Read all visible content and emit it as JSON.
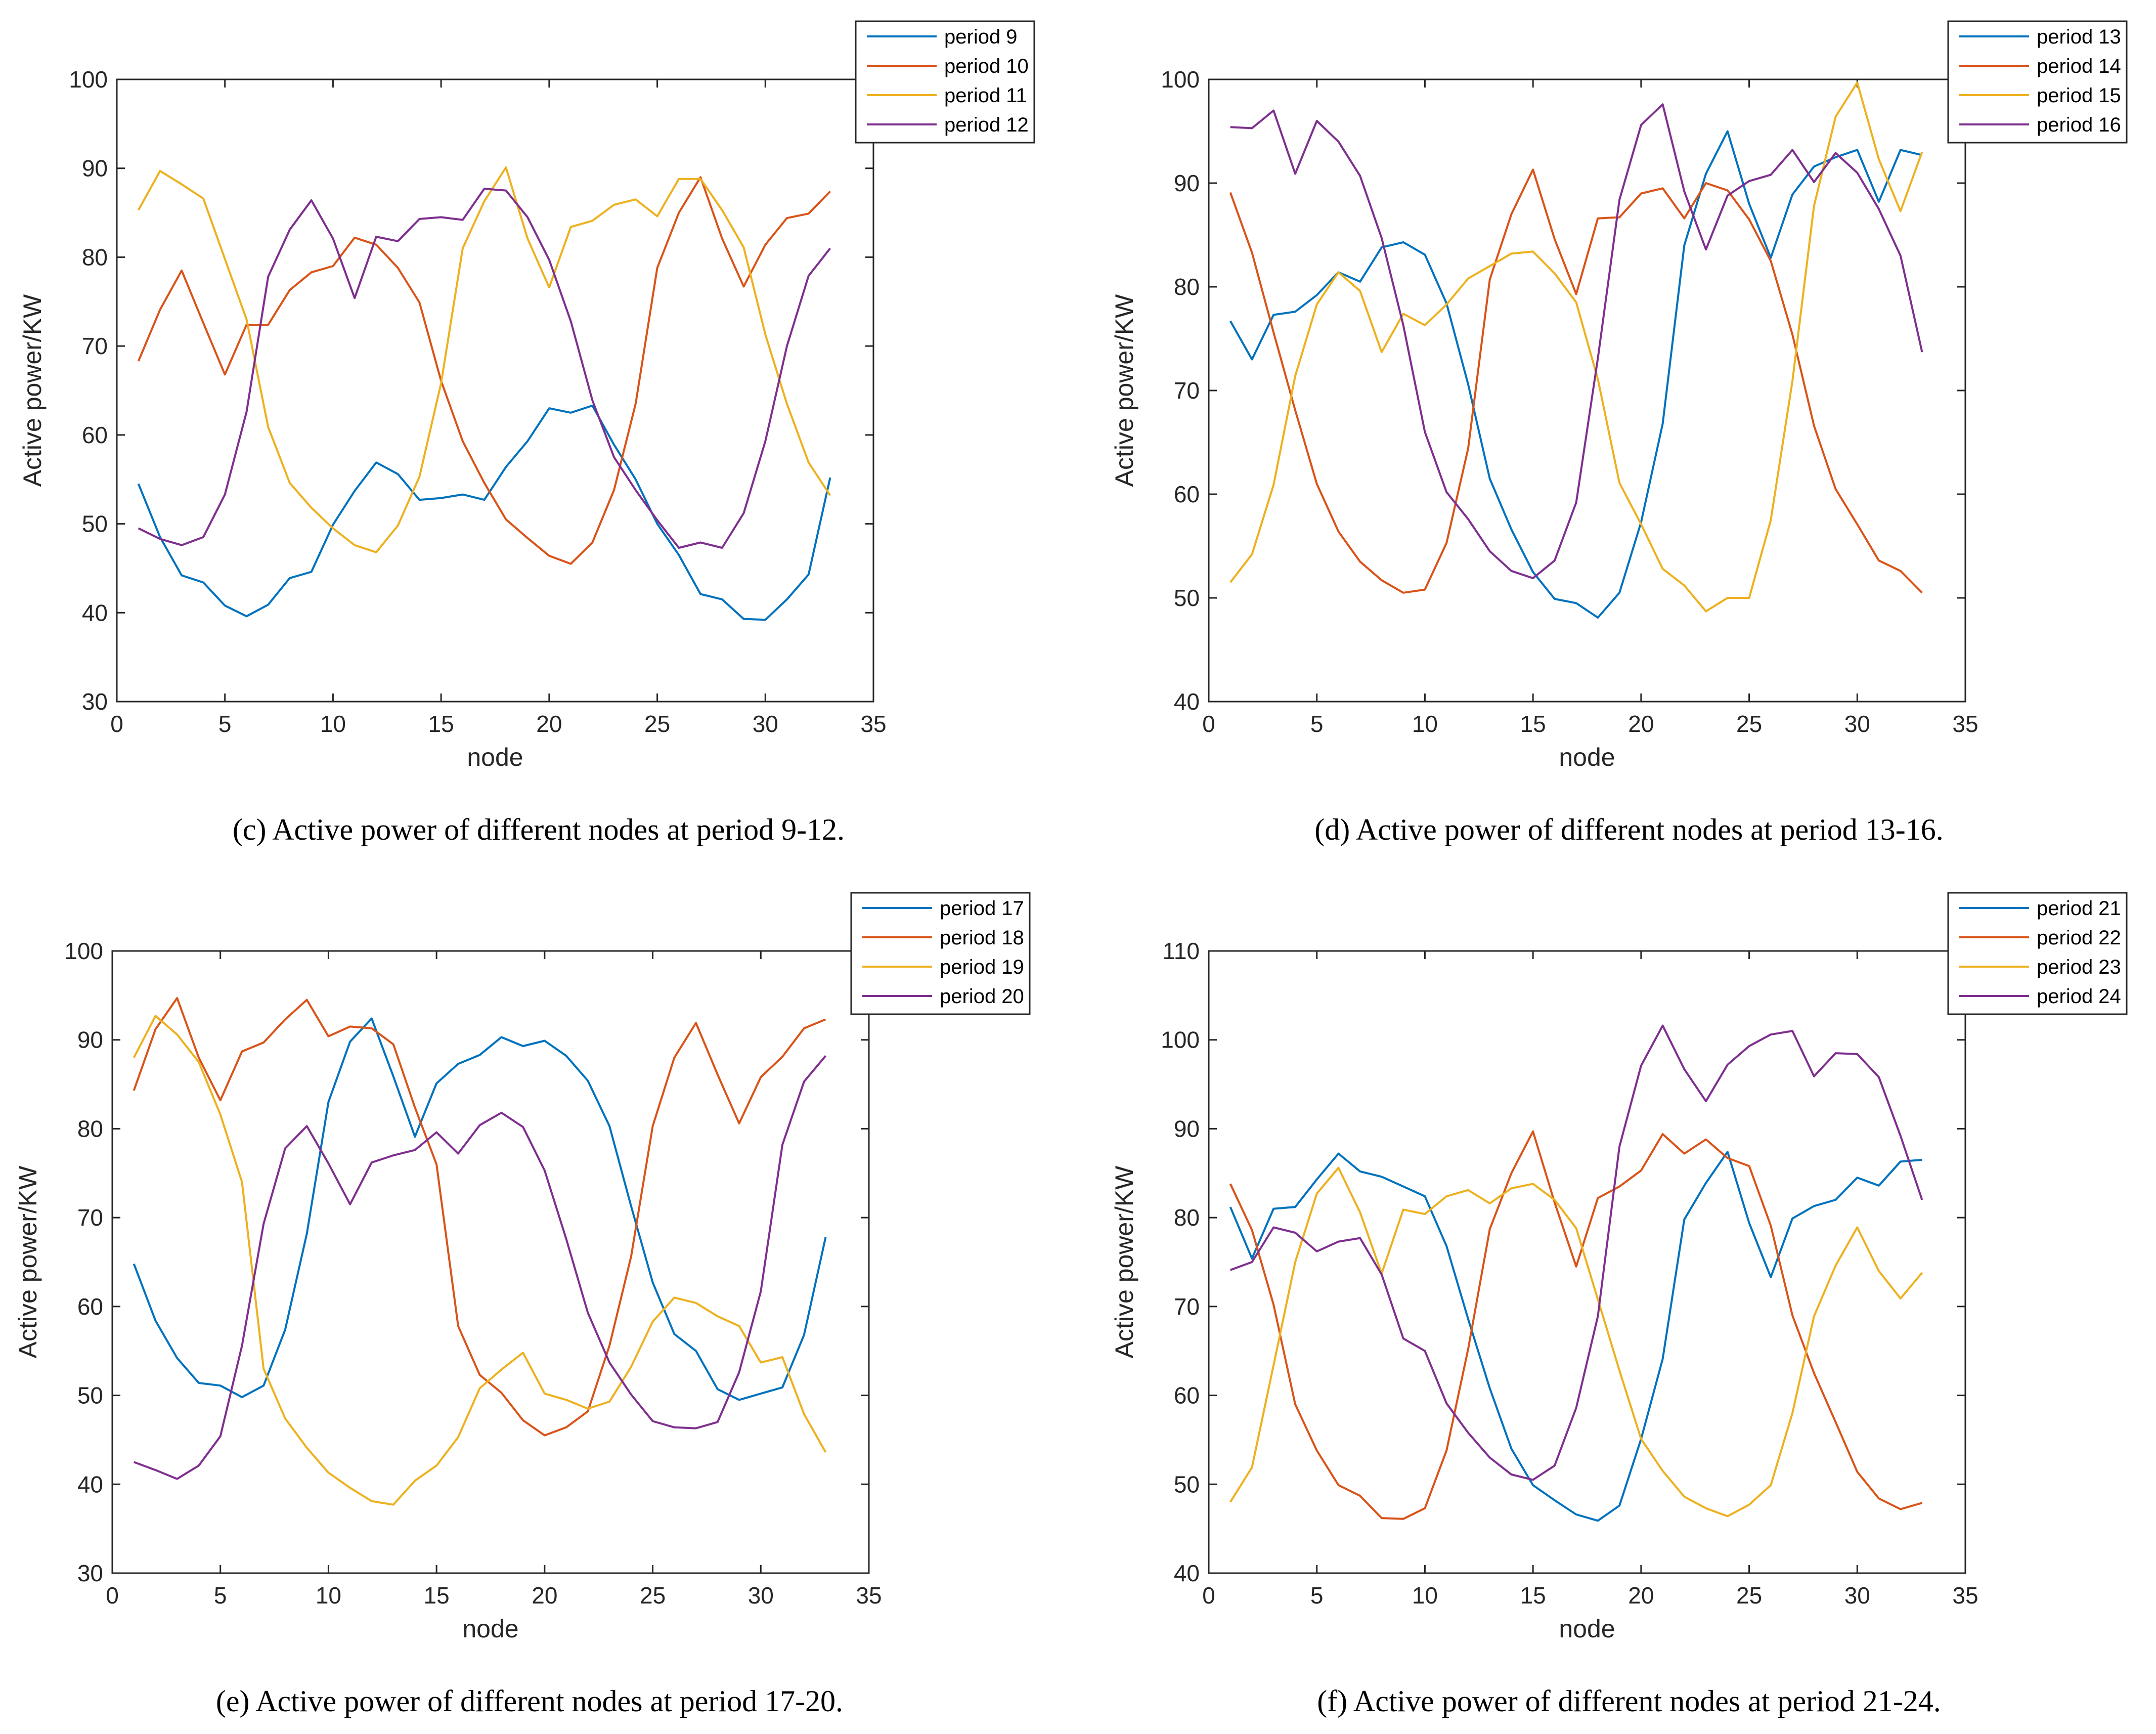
{
  "chart_data": [
    {
      "type": "line",
      "caption": "(c)  Active power of different nodes at period 9-12.",
      "xlabel": "node",
      "ylabel": "Active power/KW",
      "xlim": [
        0,
        35
      ],
      "ylim": [
        30,
        100
      ],
      "xticks": [
        0,
        5,
        10,
        15,
        20,
        25,
        30,
        35
      ],
      "yticks": [
        30,
        40,
        50,
        60,
        70,
        80,
        90,
        100
      ],
      "legend_position": "top-right",
      "grid": false,
      "x": [
        1,
        2,
        3,
        4,
        5,
        6,
        7,
        8,
        9,
        10,
        11,
        12,
        13,
        14,
        15,
        16,
        17,
        18,
        19,
        20,
        21,
        22,
        23,
        24,
        25,
        26,
        27,
        28,
        29,
        30,
        31,
        32,
        33
      ],
      "series": [
        {
          "name": "period 9",
          "color": "#0072BD",
          "values": [
            54.5,
            48.5,
            44.2,
            43.4,
            40.8,
            39.6,
            40.9,
            43.9,
            44.6,
            49.9,
            53.7,
            56.9,
            55.6,
            52.7,
            52.9,
            53.3,
            52.7,
            56.4,
            59.3,
            63.0,
            62.5,
            63.3,
            58.9,
            55.0,
            50.0,
            46.5,
            42.1,
            41.5,
            39.3,
            39.2,
            41.5,
            44.3,
            55.2
          ]
        },
        {
          "name": "period 10",
          "color": "#D95319",
          "values": [
            68.3,
            74.1,
            78.5,
            72.6,
            66.8,
            72.4,
            72.4,
            76.3,
            78.3,
            79.0,
            82.2,
            81.4,
            78.8,
            74.9,
            66.1,
            59.3,
            54.6,
            50.5,
            48.4,
            46.4,
            45.5,
            47.9,
            53.8,
            63.5,
            78.8,
            85.0,
            89.0,
            82.1,
            76.7,
            81.4,
            84.4,
            84.9,
            87.4
          ]
        },
        {
          "name": "period 11",
          "color": "#EDB120",
          "values": [
            85.3,
            89.7,
            88.2,
            86.6,
            79.8,
            73.0,
            60.9,
            54.6,
            51.8,
            49.5,
            47.6,
            46.8,
            49.8,
            55.3,
            65.8,
            81.0,
            86.3,
            90.1,
            82.1,
            76.6,
            83.4,
            84.1,
            85.9,
            86.5,
            84.6,
            88.8,
            88.8,
            85.3,
            81.1,
            71.3,
            63.5,
            56.9,
            53.2
          ]
        },
        {
          "name": "period 12",
          "color": "#7E2F8E",
          "values": [
            49.5,
            48.3,
            47.6,
            48.5,
            53.3,
            62.6,
            77.8,
            83.1,
            86.4,
            82.1,
            75.4,
            82.3,
            81.8,
            84.3,
            84.5,
            84.2,
            87.7,
            87.5,
            84.5,
            79.7,
            72.8,
            63.9,
            57.5,
            53.8,
            50.4,
            47.3,
            47.9,
            47.3,
            51.2,
            59.3,
            70.0,
            77.9,
            81.0
          ]
        }
      ]
    },
    {
      "type": "line",
      "caption": "(d)  Active power of different nodes at period 13-16.",
      "xlabel": "node",
      "ylabel": "Active power/KW",
      "xlim": [
        0,
        35
      ],
      "ylim": [
        40,
        100
      ],
      "xticks": [
        0,
        5,
        10,
        15,
        20,
        25,
        30,
        35
      ],
      "yticks": [
        40,
        50,
        60,
        70,
        80,
        90,
        100
      ],
      "legend_position": "top-right",
      "grid": false,
      "x": [
        1,
        2,
        3,
        4,
        5,
        6,
        7,
        8,
        9,
        10,
        11,
        12,
        13,
        14,
        15,
        16,
        17,
        18,
        19,
        20,
        21,
        22,
        23,
        24,
        25,
        26,
        27,
        28,
        29,
        30,
        31,
        32,
        33
      ],
      "series": [
        {
          "name": "period 13",
          "color": "#0072BD",
          "values": [
            76.7,
            73.0,
            77.3,
            77.6,
            79.2,
            81.4,
            80.5,
            83.8,
            84.3,
            83.1,
            78.4,
            70.6,
            61.5,
            56.6,
            52.5,
            49.9,
            49.5,
            48.1,
            50.5,
            57.3,
            66.8,
            84.0,
            90.9,
            95.0,
            88.0,
            82.8,
            88.9,
            91.6,
            92.5,
            93.2,
            88.2,
            93.2,
            92.7
          ]
        },
        {
          "name": "period 14",
          "color": "#D95319",
          "values": [
            89.1,
            83.3,
            75.6,
            68.1,
            61.0,
            56.4,
            53.5,
            51.7,
            50.5,
            50.8,
            55.3,
            64.4,
            80.7,
            87.0,
            91.3,
            84.6,
            79.3,
            86.6,
            86.7,
            89.0,
            89.5,
            86.6,
            90.0,
            89.3,
            86.5,
            82.5,
            75.4,
            66.6,
            60.5,
            57.1,
            53.6,
            52.6,
            50.5
          ]
        },
        {
          "name": "period 15",
          "color": "#EDB120",
          "values": [
            51.5,
            54.2,
            60.9,
            71.4,
            78.3,
            81.4,
            79.6,
            73.7,
            77.4,
            76.3,
            78.3,
            80.8,
            82.0,
            83.2,
            83.4,
            81.3,
            78.5,
            71.1,
            61.1,
            57.1,
            52.8,
            51.2,
            48.7,
            50.0,
            50.0,
            57.5,
            70.9,
            87.8,
            96.4,
            99.7,
            92.3,
            87.3,
            93.0
          ]
        },
        {
          "name": "period 16",
          "color": "#7E2F8E",
          "values": [
            95.4,
            95.3,
            97.0,
            90.9,
            96.0,
            94.0,
            90.7,
            84.7,
            76.3,
            66.0,
            60.2,
            57.6,
            54.5,
            52.6,
            51.9,
            53.6,
            59.2,
            73.1,
            88.4,
            95.6,
            97.6,
            89.2,
            83.6,
            88.8,
            90.2,
            90.8,
            93.2,
            90.1,
            92.9,
            91.0,
            87.5,
            83.0,
            73.7
          ]
        }
      ]
    },
    {
      "type": "line",
      "caption": "(e)  Active power of different nodes at period 17-20.",
      "xlabel": "node",
      "ylabel": "Active power/KW",
      "xlim": [
        0,
        35
      ],
      "ylim": [
        30,
        100
      ],
      "xticks": [
        0,
        5,
        10,
        15,
        20,
        25,
        30,
        35
      ],
      "yticks": [
        30,
        40,
        50,
        60,
        70,
        80,
        90,
        100
      ],
      "legend_position": "top-right",
      "grid": false,
      "x": [
        1,
        2,
        3,
        4,
        5,
        6,
        7,
        8,
        9,
        10,
        11,
        12,
        13,
        14,
        15,
        16,
        17,
        18,
        19,
        20,
        21,
        22,
        23,
        24,
        25,
        26,
        27,
        28,
        29,
        30,
        31,
        32,
        33
      ],
      "series": [
        {
          "name": "period 17",
          "color": "#0072BD",
          "values": [
            64.8,
            58.4,
            54.2,
            51.4,
            51.1,
            49.8,
            51.1,
            57.4,
            68.2,
            83.0,
            89.8,
            92.4,
            85.9,
            79.1,
            85.1,
            87.3,
            88.3,
            90.3,
            89.3,
            89.9,
            88.2,
            85.4,
            80.3,
            71.3,
            62.7,
            56.9,
            55.0,
            50.7,
            49.5,
            50.2,
            50.9,
            56.8,
            67.8
          ]
        },
        {
          "name": "period 18",
          "color": "#D95319",
          "values": [
            84.3,
            91.2,
            94.7,
            88.0,
            83.2,
            88.7,
            89.7,
            92.3,
            94.5,
            90.4,
            91.5,
            91.3,
            89.5,
            82.4,
            76.0,
            57.8,
            52.3,
            50.3,
            47.2,
            45.5,
            46.4,
            48.2,
            55.6,
            65.6,
            80.3,
            88.0,
            91.9,
            86.1,
            80.6,
            85.8,
            88.1,
            91.3,
            92.3
          ]
        },
        {
          "name": "period 19",
          "color": "#EDB120",
          "values": [
            88.0,
            92.7,
            90.6,
            87.5,
            81.6,
            74.0,
            53.0,
            47.4,
            44.1,
            41.3,
            39.6,
            38.1,
            37.7,
            40.4,
            42.1,
            45.3,
            50.8,
            52.9,
            54.8,
            50.2,
            49.5,
            48.5,
            49.3,
            53.2,
            58.3,
            61.0,
            60.4,
            58.9,
            57.8,
            53.7,
            54.3,
            47.9,
            43.6
          ]
        },
        {
          "name": "period 20",
          "color": "#7E2F8E",
          "values": [
            42.5,
            41.6,
            40.6,
            42.1,
            45.4,
            55.6,
            69.3,
            77.8,
            80.3,
            76.1,
            71.5,
            76.2,
            77.0,
            77.6,
            79.6,
            77.2,
            80.4,
            81.8,
            80.2,
            75.3,
            67.6,
            59.3,
            53.7,
            50.1,
            47.1,
            46.4,
            46.3,
            47.0,
            52.6,
            61.7,
            78.2,
            85.3,
            88.2
          ]
        }
      ]
    },
    {
      "type": "line",
      "caption": "(f)  Active power of different nodes at period 21-24.",
      "xlabel": "node",
      "ylabel": "Active power/KW",
      "xlim": [
        0,
        35
      ],
      "ylim": [
        40,
        110
      ],
      "xticks": [
        0,
        5,
        10,
        15,
        20,
        25,
        30,
        35
      ],
      "yticks": [
        40,
        50,
        60,
        70,
        80,
        90,
        100,
        110
      ],
      "legend_position": "top-right",
      "grid": false,
      "x": [
        1,
        2,
        3,
        4,
        5,
        6,
        7,
        8,
        9,
        10,
        11,
        12,
        13,
        14,
        15,
        16,
        17,
        18,
        19,
        20,
        21,
        22,
        23,
        24,
        25,
        26,
        27,
        28,
        29,
        30,
        31,
        32,
        33
      ],
      "series": [
        {
          "name": "period 21",
          "color": "#0072BD",
          "values": [
            81.2,
            75.4,
            81.0,
            81.2,
            84.3,
            87.2,
            85.2,
            84.6,
            83.5,
            82.4,
            76.8,
            68.6,
            60.8,
            54.0,
            49.9,
            48.2,
            46.6,
            45.9,
            47.6,
            55.1,
            64.1,
            79.8,
            83.9,
            87.4,
            79.4,
            73.3,
            79.9,
            81.3,
            82.0,
            84.5,
            83.6,
            86.3,
            86.5
          ]
        },
        {
          "name": "period 22",
          "color": "#D95319",
          "values": [
            83.8,
            78.6,
            70.2,
            59.0,
            53.8,
            49.9,
            48.7,
            46.2,
            46.1,
            47.3,
            53.8,
            65.2,
            78.7,
            85.0,
            89.7,
            81.7,
            74.5,
            82.2,
            83.5,
            85.3,
            89.4,
            87.2,
            88.8,
            86.7,
            85.8,
            79.1,
            69.0,
            62.5,
            57.0,
            51.4,
            48.4,
            47.2,
            47.9
          ]
        },
        {
          "name": "period 23",
          "color": "#EDB120",
          "values": [
            48.0,
            51.9,
            63.4,
            75.0,
            82.7,
            85.6,
            80.6,
            73.7,
            80.9,
            80.4,
            82.4,
            83.1,
            81.6,
            83.3,
            83.8,
            82.0,
            78.8,
            70.8,
            62.8,
            55.1,
            51.5,
            48.6,
            47.3,
            46.4,
            47.7,
            49.9,
            58.0,
            68.9,
            74.6,
            78.9,
            74.0,
            70.9,
            73.8
          ]
        },
        {
          "name": "period 24",
          "color": "#7E2F8E",
          "values": [
            74.1,
            75.0,
            78.9,
            78.3,
            76.2,
            77.3,
            77.7,
            73.6,
            66.4,
            65.0,
            59.1,
            55.8,
            53.0,
            51.1,
            50.5,
            52.1,
            58.6,
            68.9,
            88.0,
            97.1,
            101.6,
            96.7,
            93.1,
            97.2,
            99.3,
            100.6,
            101.0,
            95.9,
            98.5,
            98.4,
            95.8,
            89.2,
            82.0
          ]
        }
      ]
    }
  ]
}
